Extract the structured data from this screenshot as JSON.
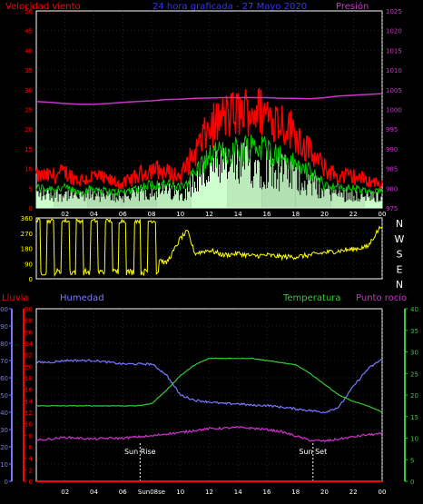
{
  "header": {
    "left": "Velocidad viento",
    "center": "24 hora graficada - 27 Mayo 2020",
    "right": "Presión"
  },
  "direction_labels": [
    "N",
    "W",
    "S",
    "E",
    "N"
  ],
  "lower_legend": {
    "rain": "Lluvia",
    "humidity": "Humedad",
    "temperature": "Temperatura",
    "dewpoint": "Punto rocío"
  },
  "colors": {
    "wind_gust": "#ff0000",
    "wind_avg": "#00cc00",
    "wind_fill": "#ccffcc",
    "pressure": "#cc33cc",
    "direction": "#ffff00",
    "humidity": "#7777ff",
    "temperature": "#33cc33",
    "dewpoint": "#cc33cc",
    "rain": "#ff0000",
    "title": "#3333ff",
    "axis": "#ffffff"
  },
  "chart_data": [
    {
      "type": "line",
      "name": "wind-pressure",
      "title": "24 hora graficada - 27 Mayo 2020",
      "x_ticks": [
        "02",
        "04",
        "06",
        "08",
        "10",
        "12",
        "14",
        "16",
        "18",
        "20",
        "22",
        "00"
      ],
      "xlim": [
        0,
        24
      ],
      "left_ylim": [
        0,
        50
      ],
      "left_ticks": [
        "0",
        "5",
        "10",
        "15",
        "20",
        "25",
        "30",
        "35",
        "40",
        "45",
        "50"
      ],
      "right_ylim": [
        975,
        1025
      ],
      "right_ticks": [
        "975",
        "980",
        "985",
        "990",
        "995",
        "1000",
        "1005",
        "1010",
        "1015",
        "1020",
        "1025"
      ],
      "x": [
        0,
        1,
        2,
        3,
        4,
        5,
        6,
        7,
        8,
        9,
        10,
        11,
        12,
        13,
        14,
        15,
        16,
        17,
        18,
        19,
        20,
        21,
        22,
        23,
        24
      ],
      "series": [
        {
          "key": "gust",
          "values": [
            8,
            8,
            9,
            7,
            8,
            7,
            6,
            8,
            10,
            9,
            8,
            14,
            20,
            23,
            24,
            25,
            24,
            22,
            19,
            14,
            10,
            8,
            8,
            7,
            6
          ]
        },
        {
          "key": "avg",
          "values": [
            5,
            5,
            5,
            4,
            5,
            4,
            4,
            5,
            6,
            6,
            5,
            9,
            13,
            14,
            15,
            16,
            15,
            13,
            11,
            9,
            6,
            5,
            5,
            4,
            4
          ]
        },
        {
          "key": "pressure",
          "values": [
            1002,
            1001.8,
            1001.5,
            1001.3,
            1001.3,
            1001.5,
            1001.8,
            1002,
            1002.2,
            1002.5,
            1002.6,
            1002.8,
            1002.9,
            1003,
            1003,
            1003,
            1003,
            1002.8,
            1002.8,
            1002.7,
            1003,
            1003.4,
            1003.6,
            1003.8,
            1004
          ]
        }
      ]
    },
    {
      "type": "line",
      "name": "wind-direction",
      "x_ticks": [],
      "xlim": [
        0,
        24
      ],
      "ylim": [
        0,
        360
      ],
      "y_ticks": [
        "0",
        "90",
        "180",
        "270",
        "360"
      ],
      "x": [
        0,
        0.5,
        1,
        1.5,
        2,
        2.5,
        3,
        3.5,
        4,
        4.5,
        5,
        5.5,
        6,
        6.5,
        7,
        7.5,
        8,
        8.5,
        9,
        9.5,
        10,
        10.5,
        11,
        12,
        13,
        14,
        15,
        16,
        17,
        18,
        19,
        20,
        21,
        22,
        23,
        23.5,
        24
      ],
      "values": [
        350,
        60,
        340,
        40,
        350,
        80,
        340,
        30,
        350,
        60,
        345,
        70,
        355,
        40,
        350,
        60,
        330,
        120,
        90,
        160,
        240,
        280,
        150,
        170,
        140,
        150,
        135,
        140,
        130,
        130,
        140,
        155,
        165,
        175,
        190,
        260,
        320
      ]
    },
    {
      "type": "line",
      "name": "humidity-temperature",
      "x_ticks": [
        "02",
        "04",
        "06",
        "Sun08se",
        "10",
        "12",
        "14",
        "16",
        "18",
        "20",
        "22",
        "00"
      ],
      "xlim": [
        0,
        24
      ],
      "humidity_ylim": [
        0,
        100
      ],
      "humidity_ticks": [
        "0",
        "10",
        "20",
        "30",
        "40",
        "50",
        "60",
        "70",
        "80",
        "90",
        "100"
      ],
      "rain_ylim": [
        0,
        30
      ],
      "rain_ticks": [
        "0",
        "2",
        "4",
        "6",
        "8",
        "10",
        "12",
        "14",
        "16",
        "18",
        "20",
        "22",
        "24",
        "26",
        "28",
        "30"
      ],
      "temp_ylim": [
        0,
        40
      ],
      "temp_ticks": [
        "0",
        "5",
        "10",
        "15",
        "20",
        "25",
        "30",
        "35",
        "40"
      ],
      "annotations": [
        "Sun Rise",
        "Sun Set"
      ],
      "x": [
        0,
        1,
        2,
        3,
        4,
        5,
        6,
        7,
        8,
        9,
        10,
        11,
        12,
        13,
        14,
        15,
        16,
        17,
        18,
        19,
        20,
        21,
        22,
        23,
        24
      ],
      "series": [
        {
          "key": "humidity",
          "values": [
            69,
            69,
            70,
            70,
            70,
            69,
            68,
            68,
            68,
            62,
            50,
            47,
            46,
            45,
            45,
            44,
            44,
            43,
            42,
            41,
            40,
            43,
            55,
            65,
            71
          ]
        },
        {
          "key": "temperature",
          "values": [
            17.5,
            17.5,
            17.5,
            17.5,
            17.5,
            17.5,
            17.5,
            17.5,
            18,
            21,
            24.5,
            27,
            28.5,
            28.5,
            28.5,
            28.5,
            28,
            27.5,
            27,
            25,
            22.5,
            20,
            18.5,
            17.5,
            16
          ]
        },
        {
          "key": "dewpoint",
          "values": [
            9.5,
            9.8,
            10.2,
            10,
            9.8,
            10,
            10,
            10.3,
            10.5,
            11,
            11.3,
            11.8,
            12.2,
            12.3,
            12.5,
            12.3,
            12,
            11.5,
            10.5,
            9.5,
            9.3,
            9.8,
            10.3,
            10.8,
            11
          ]
        },
        {
          "key": "rain",
          "values": [
            0,
            0,
            0,
            0,
            0,
            0,
            0,
            0,
            0,
            0,
            0,
            0,
            0,
            0,
            0,
            0,
            0,
            0,
            0,
            0,
            0,
            0,
            0,
            0,
            0
          ]
        }
      ]
    }
  ]
}
